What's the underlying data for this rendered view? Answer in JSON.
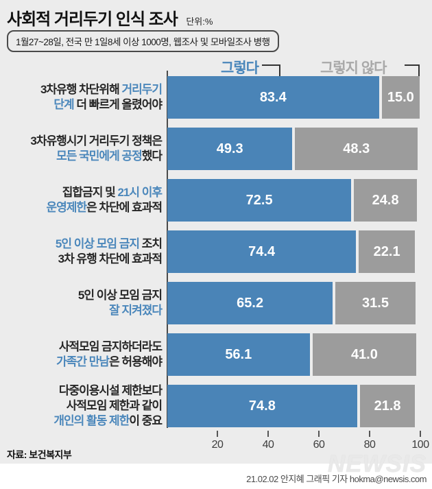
{
  "header": {
    "title": "사회적 거리두기 인식 조사",
    "unit": "단위:%",
    "note": "1월27~28일,  전국 만 1일8세 이상 1000명, 웹조사 및 모바일조사 병행"
  },
  "legend": {
    "yes": "그렇다",
    "no": "그렇지 않다"
  },
  "colors": {
    "yes_bar": "#4a84b7",
    "no_bar": "#9c9c9c",
    "label_highlight": "#4b87bb",
    "legend_no_text": "#a9a9a9",
    "background": "#ececec"
  },
  "chart_data": {
    "type": "bar",
    "orientation": "horizontal-stacked-pair",
    "title": "사회적 거리두기 인식 조사",
    "unit": "%",
    "categories": [
      "3차유행 차단위해 거리두기 단계 더 빠르게 올렸어야",
      "3차유행시기 거리두기 정책은 모든 국민에게 공정했다",
      "집합금지 및 21시 이후 운영제한은 차단에 효과적",
      "5인 이상 모임 금지 조치 3차 유행 차단에 효과적",
      "5인 이상 모임 금지 잘 지켜졌다",
      "사적모임 금지하더라도 가족간 만남은 허용해야",
      "다중이용시설 제한보다 사적모임 제한과 같이 개인의 활동 제한이 중요"
    ],
    "series": [
      {
        "name": "그렇다",
        "color": "#4a84b7",
        "values": [
          83.4,
          49.3,
          72.5,
          74.4,
          65.2,
          56.1,
          74.8
        ]
      },
      {
        "name": "그렇지 않다",
        "color": "#9c9c9c",
        "values": [
          15.0,
          48.3,
          24.8,
          22.1,
          31.5,
          41.0,
          21.8
        ]
      }
    ],
    "xlim": [
      0,
      100
    ],
    "x_ticks": [
      20,
      40,
      60,
      80,
      100
    ],
    "legend_position": "top",
    "grid": false,
    "source": "보건복지부"
  },
  "rows": [
    {
      "lines": [
        [
          [
            "3차유행 차단위해 ",
            0
          ],
          [
            "거리두기",
            1
          ]
        ],
        [
          [
            "단계",
            1
          ],
          [
            " 더 빠르게 올렸어야",
            0
          ]
        ]
      ]
    },
    {
      "lines": [
        [
          [
            "3차유행시기 거리두기 정책은",
            0
          ]
        ],
        [
          [
            "모든 국민에게 공정",
            1
          ],
          [
            "했다",
            0
          ]
        ]
      ]
    },
    {
      "lines": [
        [
          [
            "집합금지 및 ",
            0
          ],
          [
            "21시 이후",
            1
          ]
        ],
        [
          [
            "운영제한",
            1
          ],
          [
            "은 차단에 효과적",
            0
          ]
        ]
      ]
    },
    {
      "lines": [
        [
          [
            "5인 이상 모임 금지",
            1
          ],
          [
            " 조치",
            0
          ]
        ],
        [
          [
            "3차 유행 차단에 효과적",
            0
          ]
        ]
      ]
    },
    {
      "lines": [
        [
          [
            "5인 이상 모임 금지",
            0
          ]
        ],
        [
          [
            "잘 지켜졌다",
            1
          ]
        ]
      ]
    },
    {
      "lines": [
        [
          [
            "사적모임 금지하더라도",
            0
          ]
        ],
        [
          [
            "가족간 만남",
            1
          ],
          [
            "은 허용해야",
            0
          ]
        ]
      ]
    },
    {
      "lines": [
        [
          [
            "다중이용시설 제한보다",
            0
          ]
        ],
        [
          [
            "사적모임 제한과 같이",
            0
          ]
        ],
        [
          [
            "개인의 활동 제한",
            1
          ],
          [
            "이 중요",
            0
          ]
        ]
      ]
    }
  ],
  "footer": {
    "source": "자료: 보건복지부",
    "watermark": "NEWSIS",
    "credit": "21.02.02 안지혜 그래픽 기자 hokma@newsis.com"
  }
}
